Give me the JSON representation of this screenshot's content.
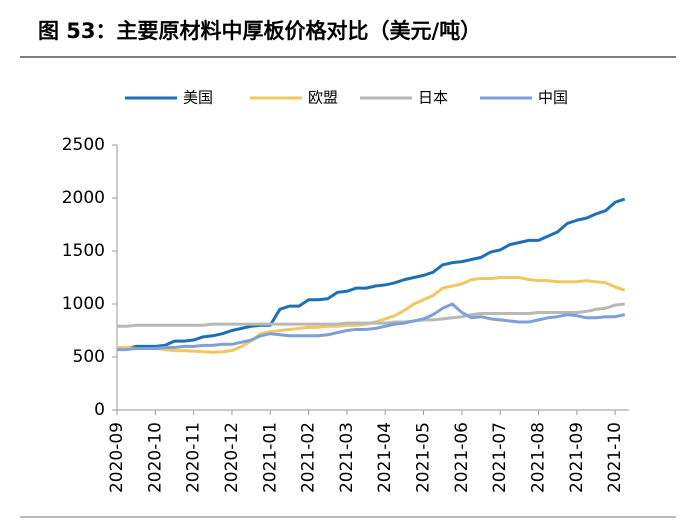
{
  "chart_data": {
    "type": "line",
    "title": "图 53：主要原材料中厚板价格对比（美元/吨）",
    "categories": [
      "2020-09",
      null,
      null,
      null,
      "2020-10",
      null,
      null,
      null,
      "2020-11",
      null,
      null,
      null,
      "2020-12",
      null,
      null,
      null,
      "2021-01",
      null,
      null,
      null,
      "2021-02",
      null,
      null,
      null,
      "2021-03",
      null,
      null,
      null,
      "2021-04",
      null,
      null,
      null,
      "2021-05",
      null,
      null,
      null,
      "2021-06",
      null,
      null,
      null,
      "2021-07",
      null,
      null,
      null,
      "2021-08",
      null,
      null,
      null,
      "2021-09",
      null,
      null,
      null,
      "2021-10",
      null
    ],
    "series": [
      {
        "name": "美国",
        "color": "#1f6fb4",
        "values": [
          580,
          580,
          600,
          600,
          600,
          610,
          650,
          650,
          660,
          690,
          700,
          720,
          750,
          770,
          790,
          800,
          800,
          950,
          980,
          980,
          1040,
          1040,
          1050,
          1110,
          1120,
          1150,
          1150,
          1170,
          1180,
          1200,
          1230,
          1250,
          1270,
          1300,
          1370,
          1390,
          1400,
          1420,
          1440,
          1490,
          1510,
          1560,
          1580,
          1600,
          1600,
          1640,
          1680,
          1760,
          1790,
          1810,
          1850,
          1880,
          1960,
          1990
        ]
      },
      {
        "name": "欧盟",
        "color": "#f0c85f",
        "values": [
          590,
          590,
          580,
          580,
          580,
          570,
          560,
          560,
          555,
          550,
          545,
          550,
          560,
          600,
          650,
          720,
          740,
          750,
          760,
          770,
          780,
          780,
          790,
          790,
          800,
          800,
          810,
          830,
          860,
          890,
          940,
          1000,
          1040,
          1080,
          1150,
          1170,
          1190,
          1230,
          1240,
          1240,
          1250,
          1250,
          1250,
          1230,
          1220,
          1220,
          1210,
          1210,
          1210,
          1220,
          1210,
          1200,
          1160,
          1130
        ]
      },
      {
        "name": "日本",
        "color": "#b8b8b8",
        "values": [
          790,
          790,
          800,
          800,
          800,
          800,
          800,
          800,
          800,
          800,
          810,
          810,
          810,
          810,
          810,
          810,
          810,
          810,
          810,
          810,
          810,
          810,
          810,
          810,
          820,
          820,
          820,
          820,
          820,
          830,
          830,
          840,
          850,
          850,
          860,
          870,
          880,
          900,
          910,
          910,
          910,
          910,
          910,
          910,
          920,
          920,
          920,
          920,
          920,
          930,
          950,
          960,
          990,
          1000
        ]
      },
      {
        "name": "中国",
        "color": "#7ea0d8",
        "values": [
          570,
          570,
          580,
          580,
          580,
          590,
          590,
          600,
          600,
          610,
          610,
          620,
          620,
          640,
          660,
          700,
          720,
          710,
          700,
          700,
          700,
          700,
          710,
          730,
          750,
          760,
          760,
          770,
          790,
          810,
          820,
          840,
          860,
          900,
          960,
          1000,
          920,
          870,
          880,
          860,
          850,
          840,
          830,
          830,
          850,
          870,
          880,
          900,
          890,
          870,
          870,
          880,
          880,
          900
        ]
      }
    ],
    "ylim": [
      0,
      2500
    ],
    "yticks": [
      0,
      500,
      1000,
      1500,
      2000,
      2500
    ],
    "legend": "top"
  }
}
